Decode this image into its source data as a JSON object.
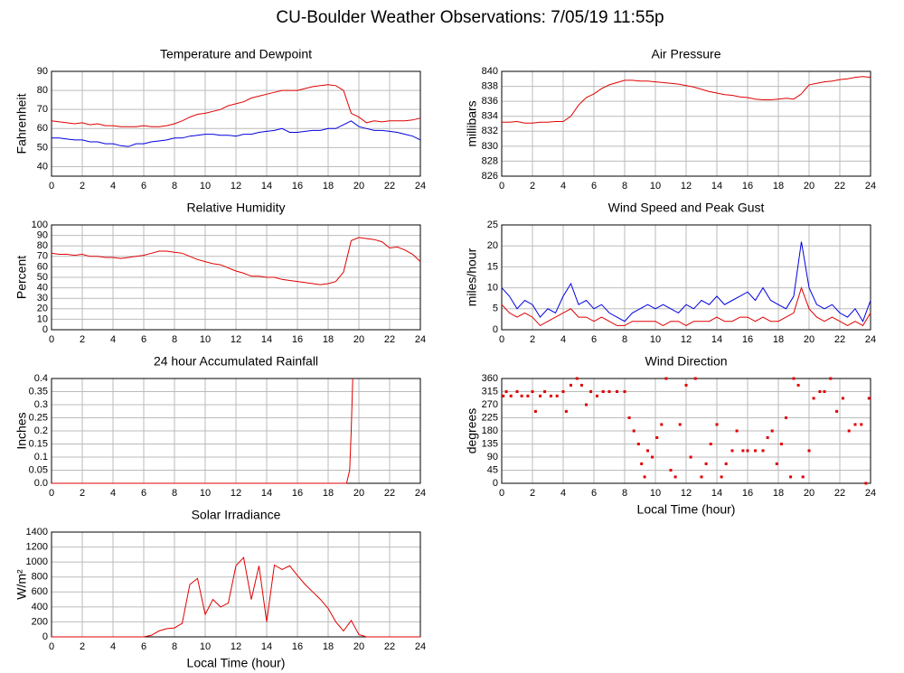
{
  "title": "CU-Boulder Weather Observations: 7/05/19 11:55p",
  "chart_data": [
    {
      "type": "line",
      "title": "Temperature and Dewpoint",
      "ylabel": "Fahrenheit",
      "xlim": [
        0,
        24
      ],
      "xticks": [
        0,
        2,
        4,
        6,
        8,
        10,
        12,
        14,
        16,
        18,
        20,
        22,
        24
      ],
      "ylim": [
        35,
        90
      ],
      "yticks": [
        40,
        50,
        60,
        70,
        80,
        90
      ],
      "grid": true,
      "x": [
        0,
        0.5,
        1,
        1.5,
        2,
        2.5,
        3,
        3.5,
        4,
        4.5,
        5,
        5.5,
        6,
        6.5,
        7,
        7.5,
        8,
        8.5,
        9,
        9.5,
        10,
        10.5,
        11,
        11.5,
        12,
        12.5,
        13,
        13.5,
        14,
        14.5,
        15,
        15.5,
        16,
        16.5,
        17,
        17.5,
        18,
        18.5,
        19,
        19.5,
        20,
        20.5,
        21,
        21.5,
        22,
        22.5,
        23,
        23.5,
        24
      ],
      "series": [
        {
          "color": "#e00000",
          "values": [
            64,
            63.5,
            63,
            62.5,
            63,
            62,
            62.5,
            61.5,
            61.5,
            61,
            61,
            61,
            61.5,
            61,
            61,
            61.5,
            62.5,
            64,
            66,
            67.5,
            68,
            69,
            70,
            72,
            73,
            74,
            76,
            77,
            78,
            79,
            80,
            80,
            80,
            81,
            82,
            82.5,
            83,
            82.5,
            80,
            68,
            66,
            63,
            64,
            63.5,
            64,
            64,
            64,
            64.5,
            65.5
          ]
        },
        {
          "color": "#0000e0",
          "values": [
            55,
            55,
            54.5,
            54,
            54,
            53,
            53,
            52,
            52,
            51,
            50.5,
            52,
            52,
            53,
            53.5,
            54,
            55,
            55,
            56,
            56.5,
            57,
            57,
            56.5,
            56.5,
            56,
            57,
            57,
            58,
            58.5,
            59,
            60,
            58,
            58,
            58.5,
            59,
            59,
            60,
            60,
            62,
            64,
            61,
            60,
            59,
            59,
            58.5,
            58,
            57,
            56,
            54
          ]
        }
      ]
    },
    {
      "type": "line",
      "title": "Air Pressure",
      "ylabel": "millibars",
      "xlim": [
        0,
        24
      ],
      "xticks": [
        0,
        2,
        4,
        6,
        8,
        10,
        12,
        14,
        16,
        18,
        20,
        22,
        24
      ],
      "ylim": [
        826,
        840
      ],
      "yticks": [
        826,
        828,
        830,
        832,
        834,
        836,
        838,
        840
      ],
      "grid": true,
      "x": [
        0,
        0.5,
        1,
        1.5,
        2,
        2.5,
        3,
        3.5,
        4,
        4.5,
        5,
        5.5,
        6,
        6.5,
        7,
        7.5,
        8,
        8.5,
        9,
        9.5,
        10,
        10.5,
        11,
        11.5,
        12,
        12.5,
        13,
        13.5,
        14,
        14.5,
        15,
        15.5,
        16,
        16.5,
        17,
        17.5,
        18,
        18.5,
        19,
        19.5,
        20,
        20.5,
        21,
        21.5,
        22,
        22.5,
        23,
        23.5,
        24
      ],
      "series": [
        {
          "color": "#e00000",
          "values": [
            833.2,
            833.2,
            833.3,
            833.1,
            833.1,
            833.2,
            833.2,
            833.3,
            833.3,
            834,
            835.5,
            836.5,
            837,
            837.7,
            838.2,
            838.5,
            838.8,
            838.8,
            838.7,
            838.7,
            838.6,
            838.5,
            838.4,
            838.3,
            838.1,
            837.9,
            837.6,
            837.3,
            837.1,
            836.9,
            836.8,
            836.6,
            836.5,
            836.3,
            836.2,
            836.2,
            836.3,
            836.4,
            836.3,
            837,
            838.2,
            838.4,
            838.6,
            838.7,
            838.9,
            839,
            839.2,
            839.3,
            839.2
          ]
        }
      ]
    },
    {
      "type": "line",
      "title": "Relative Humidity",
      "ylabel": "Percent",
      "xlim": [
        0,
        24
      ],
      "xticks": [
        0,
        2,
        4,
        6,
        8,
        10,
        12,
        14,
        16,
        18,
        20,
        22,
        24
      ],
      "ylim": [
        0,
        100
      ],
      "yticks": [
        0,
        10,
        20,
        30,
        40,
        50,
        60,
        70,
        80,
        90,
        100
      ],
      "grid": true,
      "x": [
        0,
        0.5,
        1,
        1.5,
        2,
        2.5,
        3,
        3.5,
        4,
        4.5,
        5,
        5.5,
        6,
        6.5,
        7,
        7.5,
        8,
        8.5,
        9,
        9.5,
        10,
        10.5,
        11,
        11.5,
        12,
        12.5,
        13,
        13.5,
        14,
        14.5,
        15,
        15.5,
        16,
        16.5,
        17,
        17.5,
        18,
        18.5,
        19,
        19.5,
        20,
        20.5,
        21,
        21.5,
        22,
        22.5,
        23,
        23.5,
        24
      ],
      "series": [
        {
          "color": "#e00000",
          "values": [
            73,
            72,
            72,
            71,
            72,
            70,
            70,
            69,
            69,
            68,
            69,
            70,
            71,
            73,
            75,
            75,
            74,
            73,
            70,
            67,
            65,
            63,
            62,
            59,
            56,
            54,
            51,
            51,
            50,
            50,
            48,
            47,
            46,
            45,
            44,
            43,
            44,
            46,
            55,
            85,
            88,
            87,
            86,
            84,
            78,
            79,
            76,
            72,
            65
          ]
        }
      ]
    },
    {
      "type": "line",
      "title": "Wind Speed and Peak Gust",
      "ylabel": "miles/hour",
      "xlim": [
        0,
        24
      ],
      "xticks": [
        0,
        2,
        4,
        6,
        8,
        10,
        12,
        14,
        16,
        18,
        20,
        22,
        24
      ],
      "ylim": [
        0,
        25
      ],
      "yticks": [
        0,
        5,
        10,
        15,
        20,
        25
      ],
      "grid": true,
      "x": [
        0,
        0.5,
        1,
        1.5,
        2,
        2.5,
        3,
        3.5,
        4,
        4.5,
        5,
        5.5,
        6,
        6.5,
        7,
        7.5,
        8,
        8.5,
        9,
        9.5,
        10,
        10.5,
        11,
        11.5,
        12,
        12.5,
        13,
        13.5,
        14,
        14.5,
        15,
        15.5,
        16,
        16.5,
        17,
        17.5,
        18,
        18.5,
        19,
        19.5,
        20,
        20.5,
        21,
        21.5,
        22,
        22.5,
        23,
        23.5,
        24
      ],
      "series": [
        {
          "color": "#0000e0",
          "values": [
            10,
            8,
            5,
            7,
            6,
            3,
            5,
            4,
            8,
            11,
            6,
            7,
            5,
            6,
            4,
            3,
            2,
            4,
            5,
            6,
            5,
            6,
            5,
            4,
            6,
            5,
            7,
            6,
            8,
            6,
            7,
            8,
            9,
            7,
            10,
            7,
            6,
            5,
            8,
            21,
            10,
            6,
            5,
            6,
            4,
            3,
            5,
            2,
            7
          ]
        },
        {
          "color": "#e00000",
          "values": [
            6,
            4,
            3,
            4,
            3,
            1,
            2,
            3,
            4,
            5,
            3,
            3,
            2,
            3,
            2,
            1,
            1,
            2,
            2,
            2,
            2,
            1,
            2,
            2,
            1,
            2,
            2,
            2,
            3,
            2,
            2,
            3,
            3,
            2,
            3,
            2,
            2,
            3,
            4,
            10,
            5,
            3,
            2,
            3,
            2,
            1,
            2,
            1,
            4
          ]
        }
      ]
    },
    {
      "type": "line",
      "title": "24 hour Accumulated Rainfall",
      "ylabel": "Inches",
      "xlim": [
        0,
        24
      ],
      "xticks": [
        0,
        2,
        4,
        6,
        8,
        10,
        12,
        14,
        16,
        18,
        20,
        22,
        24
      ],
      "ylim": [
        0,
        0.4
      ],
      "yticks": [
        {
          "value": 0,
          "label": "0.0"
        },
        0.05,
        0.1,
        0.15,
        0.2,
        0.25,
        0.3,
        0.35,
        0.4
      ],
      "grid": true,
      "x": [
        0,
        19.2,
        19.4,
        19.5,
        19.6
      ],
      "series": [
        {
          "color": "#e00000",
          "values": [
            0,
            0,
            0.05,
            0.2,
            0.4
          ]
        }
      ]
    },
    {
      "type": "scatter",
      "title": "Wind Direction",
      "ylabel": "degrees",
      "xlabel": "Local Time (hour)",
      "xlim": [
        0,
        24
      ],
      "xticks": [
        0,
        2,
        4,
        6,
        8,
        10,
        12,
        14,
        16,
        18,
        20,
        22,
        24
      ],
      "ylim": [
        0,
        360
      ],
      "yticks": [
        0,
        45,
        90,
        135,
        180,
        225,
        270,
        315,
        360
      ],
      "grid": true,
      "x": [
        0.1,
        0.3,
        0.6,
        1,
        1.3,
        1.7,
        2,
        2.2,
        2.5,
        2.8,
        3.2,
        3.6,
        4,
        4.2,
        4.5,
        4.9,
        5.2,
        5.5,
        5.8,
        6.2,
        6.6,
        7,
        7.5,
        8,
        8.3,
        8.6,
        8.9,
        9.1,
        9.3,
        9.5,
        9.8,
        10.1,
        10.4,
        10.7,
        11,
        11.3,
        11.6,
        12,
        12.3,
        12.6,
        13,
        13.3,
        13.6,
        14,
        14.3,
        14.6,
        15,
        15.3,
        15.7,
        16,
        16.5,
        17,
        17.3,
        17.6,
        17.9,
        18.2,
        18.5,
        18.8,
        19,
        19.3,
        19.6,
        20,
        20.3,
        20.7,
        21,
        21.4,
        21.8,
        22.2,
        22.6,
        23,
        23.4,
        23.7,
        23.9
      ],
      "series": [
        {
          "color": "#e00000",
          "values": [
            300,
            315,
            300,
            315,
            300,
            300,
            315,
            247,
            300,
            315,
            300,
            300,
            315,
            247,
            337,
            360,
            337,
            270,
            315,
            300,
            315,
            315,
            315,
            315,
            225,
            180,
            135,
            67,
            22,
            112,
            90,
            157,
            202,
            360,
            45,
            22,
            202,
            337,
            90,
            360,
            22,
            67,
            135,
            202,
            22,
            67,
            112,
            180,
            112,
            112,
            112,
            112,
            157,
            180,
            67,
            135,
            225,
            22,
            360,
            337,
            22,
            112,
            292,
            315,
            315,
            360,
            247,
            292,
            180,
            202,
            202,
            0,
            292
          ]
        }
      ]
    },
    {
      "type": "line",
      "title": "Solar Irradiance",
      "ylabel": "W/m²",
      "xlabel": "Local Time (hour)",
      "xlim": [
        0,
        24
      ],
      "xticks": [
        0,
        2,
        4,
        6,
        8,
        10,
        12,
        14,
        16,
        18,
        20,
        22,
        24
      ],
      "ylim": [
        0,
        1400
      ],
      "yticks": [
        0,
        200,
        400,
        600,
        800,
        1000,
        1200,
        1400
      ],
      "grid": true,
      "x": [
        0,
        0.5,
        1,
        1.5,
        2,
        2.5,
        3,
        3.5,
        4,
        4.5,
        5,
        5.5,
        6,
        6.5,
        7,
        7.5,
        8,
        8.5,
        9,
        9.5,
        10,
        10.5,
        11,
        11.5,
        12,
        12.5,
        13,
        13.5,
        14,
        14.5,
        15,
        15.5,
        16,
        16.5,
        17,
        17.5,
        18,
        18.5,
        19,
        19.5,
        20,
        20.5,
        21,
        21.5,
        22,
        22.5,
        23,
        23.5,
        24
      ],
      "series": [
        {
          "color": "#e00000",
          "values": [
            0,
            0,
            0,
            0,
            0,
            0,
            0,
            0,
            0,
            0,
            0,
            0,
            0,
            20,
            80,
            110,
            120,
            180,
            700,
            780,
            300,
            500,
            400,
            450,
            950,
            1060,
            500,
            950,
            200,
            960,
            900,
            950,
            820,
            700,
            600,
            500,
            380,
            200,
            80,
            220,
            30,
            0,
            0,
            0,
            0,
            0,
            0,
            0,
            0
          ]
        }
      ]
    }
  ]
}
